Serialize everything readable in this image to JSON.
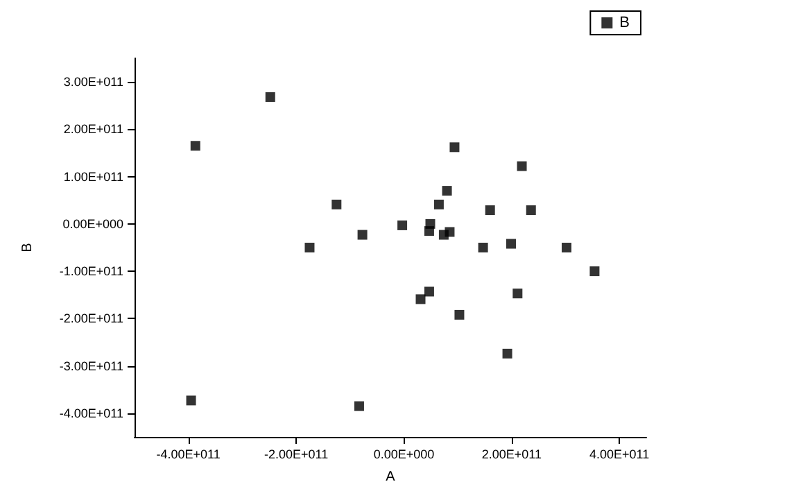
{
  "chart_data": {
    "type": "scatter",
    "xlabel": "A",
    "ylabel": "B",
    "legend": "top right",
    "marker": "square",
    "grid": false,
    "xlim": [
      -500000000000.0,
      450000000000.0
    ],
    "xticks": [
      {
        "value": -400000000000.0,
        "label": "-4.00E+011"
      },
      {
        "value": -200000000000.0,
        "label": "-2.00E+011"
      },
      {
        "value": 0,
        "label": "0.00E+000"
      },
      {
        "value": 200000000000.0,
        "label": "2.00E+011"
      },
      {
        "value": 400000000000.0,
        "label": "4.00E+011"
      }
    ],
    "ylim": [
      -450000000000.0,
      350000000000.0
    ],
    "yticks": [
      {
        "value": -400000000000.0,
        "label": "-4.00E+011"
      },
      {
        "value": -300000000000.0,
        "label": "-3.00E+011"
      },
      {
        "value": -200000000000.0,
        "label": "-2.00E+011"
      },
      {
        "value": -100000000000.0,
        "label": "-1.00E+011"
      },
      {
        "value": 0,
        "label": "0.00E+000"
      },
      {
        "value": 100000000000.0,
        "label": "1.00E+011"
      },
      {
        "value": 200000000000.0,
        "label": "2.00E+011"
      },
      {
        "value": 300000000000.0,
        "label": "3.00E+011"
      }
    ],
    "series": [
      {
        "name": "B",
        "color": "#000000",
        "x": [
          -387000000000.0,
          -248000000000.0,
          -125000000000.0,
          -175000000000.0,
          -77000000000.0,
          -3000000000.0,
          -395000000000.0,
          -83000000000.0,
          94000000000.0,
          219000000000.0,
          80000000000.0,
          65000000000.0,
          160000000000.0,
          236000000000.0,
          49000000000.0,
          47000000000.0,
          85000000000.0,
          74000000000.0,
          147000000000.0,
          199000000000.0,
          302000000000.0,
          354000000000.0,
          47000000000.0,
          31000000000.0,
          211000000000.0,
          103000000000.0,
          192000000000.0
        ],
        "values": [
          165000000000.0,
          268000000000.0,
          41000000000.0,
          -50000000000.0,
          -23000000000.0,
          -3000000000.0,
          -373000000000.0,
          -385000000000.0,
          162000000000.0,
          122000000000.0,
          70000000000.0,
          41000000000.0,
          29000000000.0,
          29000000000.0,
          0.0,
          -15000000000.0,
          -17000000000.0,
          -23000000000.0,
          -50000000000.0,
          -42000000000.0,
          -50000000000.0,
          -100000000000.0,
          -143000000000.0,
          -159000000000.0,
          -147000000000.0,
          -192000000000.0,
          -274000000000.0
        ]
      }
    ]
  }
}
